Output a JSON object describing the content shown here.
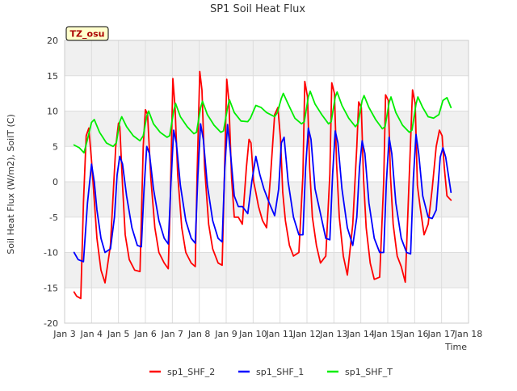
{
  "chart_data": {
    "type": "line",
    "title": "SP1 Soil Heat Flux",
    "xlabel": "Time",
    "ylabel": "Soil Heat Flux (W/m2), SoilT (C)",
    "badge": "TZ_osu",
    "ylim": [
      -20,
      20
    ],
    "xlim": [
      3,
      18
    ],
    "yticks": [
      -20,
      -15,
      -10,
      -5,
      0,
      5,
      10,
      15,
      20
    ],
    "xticks": [
      {
        "value": 3,
        "label": "Jan 3"
      },
      {
        "value": 4,
        "label": "Jan 4"
      },
      {
        "value": 5,
        "label": "Jan 5"
      },
      {
        "value": 6,
        "label": "Jan 6"
      },
      {
        "value": 7,
        "label": "Jan 7"
      },
      {
        "value": 8,
        "label": "Jan 8"
      },
      {
        "value": 9,
        "label": "Jan 9"
      },
      {
        "value": 10,
        "label": "Jan 10"
      },
      {
        "value": 11,
        "label": "Jan 11"
      },
      {
        "value": 12,
        "label": "Jan 12"
      },
      {
        "value": 13,
        "label": "Jan 13"
      },
      {
        "value": 14,
        "label": "Jan 14"
      },
      {
        "value": 15,
        "label": "Jan 15"
      },
      {
        "value": 16,
        "label": "Jan 16"
      },
      {
        "value": 17,
        "label": "Jan 17"
      },
      {
        "value": 18,
        "label": "Jan 18"
      }
    ],
    "grid": true,
    "legend_position": "bottom",
    "series": [
      {
        "name": "sp1_SHF_2",
        "color": "#ff0000",
        "x": [
          3.35,
          3.45,
          3.6,
          3.7,
          3.8,
          3.9,
          4.0,
          4.2,
          4.35,
          4.5,
          4.7,
          4.9,
          5.0,
          5.05,
          5.15,
          5.25,
          5.4,
          5.6,
          5.8,
          5.92,
          6.0,
          6.08,
          6.2,
          6.35,
          6.5,
          6.7,
          6.85,
          6.92,
          7.02,
          7.1,
          7.2,
          7.35,
          7.5,
          7.7,
          7.85,
          7.92,
          8.02,
          8.1,
          8.2,
          8.35,
          8.5,
          8.7,
          8.85,
          8.92,
          9.02,
          9.1,
          9.2,
          9.3,
          9.45,
          9.6,
          9.75,
          9.85,
          9.92,
          10.02,
          10.1,
          10.2,
          10.35,
          10.5,
          10.65,
          10.8,
          10.92,
          11.02,
          11.1,
          11.2,
          11.35,
          11.5,
          11.7,
          11.85,
          11.92,
          12.02,
          12.1,
          12.2,
          12.35,
          12.5,
          12.7,
          12.85,
          12.92,
          13.02,
          13.1,
          13.2,
          13.35,
          13.5,
          13.7,
          13.85,
          13.92,
          14.02,
          14.1,
          14.2,
          14.35,
          14.5,
          14.7,
          14.85,
          14.92,
          15.02,
          15.1,
          15.2,
          15.35,
          15.5,
          15.65,
          15.8,
          15.92,
          16.02,
          16.1,
          16.2,
          16.35,
          16.5,
          16.65,
          16.8,
          16.92,
          17.02,
          17.1,
          17.2,
          17.35
        ],
        "y": [
          -15.6,
          -16.2,
          -16.5,
          -3.0,
          6.5,
          7.6,
          3.0,
          -8.0,
          -12.5,
          -14.3,
          -9.0,
          5.0,
          8.3,
          7.8,
          -0.5,
          -7.5,
          -11.0,
          -12.5,
          -12.7,
          5.0,
          10.2,
          9.5,
          0.5,
          -6.5,
          -10.0,
          -11.5,
          -12.3,
          -3.0,
          14.6,
          10.5,
          1.0,
          -6.5,
          -10.0,
          -11.5,
          -12.0,
          1.0,
          15.6,
          13.0,
          2.0,
          -6.0,
          -9.5,
          -11.5,
          -11.8,
          -1.5,
          14.5,
          11.5,
          0.5,
          -5.0,
          -5.0,
          -6.0,
          2.0,
          6.0,
          5.5,
          0.0,
          -1.5,
          -3.5,
          -5.5,
          -6.5,
          1.0,
          9.5,
          10.5,
          6.0,
          -1.5,
          -5.5,
          -9.0,
          -10.5,
          -10.0,
          1.0,
          14.2,
          12.0,
          2.0,
          -5.0,
          -9.0,
          -11.5,
          -10.5,
          1.0,
          14.0,
          12.5,
          2.5,
          -5.0,
          -10.5,
          -13.2,
          -6.0,
          5.0,
          11.3,
          10.5,
          0.5,
          -6.5,
          -11.5,
          -13.8,
          -13.5,
          0.0,
          12.3,
          11.5,
          1.0,
          -6.0,
          -10.5,
          -12.0,
          -14.2,
          1.0,
          13.0,
          11.0,
          -0.5,
          -3.5,
          -7.5,
          -6.0,
          -1.0,
          5.0,
          7.3,
          6.5,
          2.0,
          -2.0,
          -2.6
        ]
      },
      {
        "name": "sp1_SHF_1",
        "color": "#0000ff",
        "x": [
          3.35,
          3.5,
          3.7,
          3.85,
          4.0,
          4.1,
          4.2,
          4.35,
          4.5,
          4.7,
          4.85,
          4.95,
          5.05,
          5.15,
          5.3,
          5.5,
          5.7,
          5.85,
          5.95,
          6.05,
          6.15,
          6.3,
          6.5,
          6.7,
          6.85,
          6.95,
          7.05,
          7.15,
          7.3,
          7.5,
          7.7,
          7.85,
          7.95,
          8.05,
          8.15,
          8.3,
          8.5,
          8.7,
          8.85,
          8.95,
          9.05,
          9.15,
          9.3,
          9.45,
          9.6,
          9.8,
          9.95,
          10.1,
          10.25,
          10.4,
          10.6,
          10.8,
          10.95,
          11.05,
          11.15,
          11.3,
          11.5,
          11.7,
          11.85,
          11.95,
          12.05,
          12.15,
          12.3,
          12.5,
          12.7,
          12.85,
          12.95,
          13.05,
          13.15,
          13.3,
          13.5,
          13.7,
          13.85,
          13.95,
          14.05,
          14.15,
          14.3,
          14.5,
          14.7,
          14.85,
          14.95,
          15.05,
          15.15,
          15.3,
          15.5,
          15.7,
          15.85,
          15.95,
          16.05,
          16.15,
          16.3,
          16.5,
          16.65,
          16.8,
          16.95,
          17.05,
          17.15,
          17.35
        ],
        "y": [
          -10.0,
          -11.0,
          -11.3,
          -3.0,
          2.5,
          0.0,
          -4.0,
          -8.0,
          -10.0,
          -9.5,
          -5.0,
          1.0,
          3.6,
          2.5,
          -2.0,
          -6.5,
          -9.0,
          -9.2,
          -1.0,
          5.0,
          4.0,
          -1.0,
          -5.5,
          -8.0,
          -8.8,
          0.0,
          7.3,
          5.5,
          -0.5,
          -5.5,
          -8.0,
          -8.7,
          1.0,
          8.2,
          6.0,
          -0.5,
          -5.5,
          -8.0,
          -8.5,
          2.0,
          8.1,
          4.5,
          -2.0,
          -3.5,
          -3.5,
          -4.5,
          0.0,
          3.6,
          1.0,
          -1.0,
          -3.0,
          -4.8,
          -1.0,
          5.5,
          6.3,
          0.0,
          -5.0,
          -7.5,
          -7.5,
          2.0,
          7.6,
          6.0,
          -1.0,
          -4.5,
          -8.0,
          -8.2,
          1.0,
          7.2,
          5.5,
          -1.0,
          -6.5,
          -9.0,
          -5.0,
          2.0,
          5.8,
          4.0,
          -3.0,
          -8.0,
          -10.0,
          -10.0,
          0.0,
          6.3,
          4.0,
          -3.0,
          -8.0,
          -10.0,
          -10.2,
          0.5,
          6.7,
          4.0,
          -2.0,
          -5.0,
          -5.2,
          -4.0,
          3.5,
          4.8,
          3.5,
          -1.5
        ]
      },
      {
        "name": "sp1_SHF_T",
        "color": "#00ee00",
        "x": [
          3.35,
          3.55,
          3.72,
          3.85,
          4.0,
          4.1,
          4.3,
          4.55,
          4.8,
          4.92,
          5.05,
          5.12,
          5.3,
          5.55,
          5.8,
          5.92,
          6.05,
          6.12,
          6.3,
          6.55,
          6.8,
          6.9,
          7.05,
          7.12,
          7.3,
          7.55,
          7.8,
          7.9,
          8.05,
          8.12,
          8.3,
          8.55,
          8.8,
          8.9,
          9.05,
          9.12,
          9.3,
          9.55,
          9.8,
          9.9,
          10.1,
          10.3,
          10.5,
          10.8,
          10.9,
          11.05,
          11.12,
          11.3,
          11.55,
          11.8,
          11.9,
          12.05,
          12.12,
          12.3,
          12.55,
          12.8,
          12.9,
          13.05,
          13.12,
          13.3,
          13.55,
          13.8,
          13.9,
          14.05,
          14.12,
          14.3,
          14.55,
          14.8,
          14.9,
          15.05,
          15.12,
          15.3,
          15.55,
          15.8,
          15.9,
          16.05,
          16.12,
          16.3,
          16.5,
          16.7,
          16.9,
          17.05,
          17.2,
          17.35
        ],
        "y": [
          5.2,
          4.8,
          4.1,
          6.0,
          8.4,
          8.8,
          7.0,
          5.5,
          5.0,
          5.5,
          8.5,
          9.2,
          7.8,
          6.5,
          5.8,
          6.5,
          9.3,
          10.0,
          8.2,
          7.0,
          6.3,
          6.5,
          10.0,
          11.1,
          9.2,
          7.8,
          6.8,
          7.0,
          10.5,
          11.4,
          9.5,
          8.0,
          7.0,
          7.2,
          10.5,
          11.6,
          9.8,
          8.6,
          8.5,
          9.0,
          10.8,
          10.5,
          9.8,
          9.2,
          9.8,
          11.8,
          12.5,
          11.0,
          9.0,
          8.2,
          8.5,
          12.0,
          12.8,
          11.0,
          9.5,
          8.2,
          8.5,
          12.0,
          12.7,
          10.8,
          9.0,
          7.8,
          8.3,
          11.5,
          12.2,
          10.5,
          8.8,
          7.5,
          7.8,
          11.2,
          12.0,
          9.8,
          8.0,
          7.0,
          7.3,
          11.0,
          12.0,
          10.5,
          9.2,
          9.0,
          9.5,
          11.5,
          11.9,
          10.5
        ]
      }
    ]
  }
}
